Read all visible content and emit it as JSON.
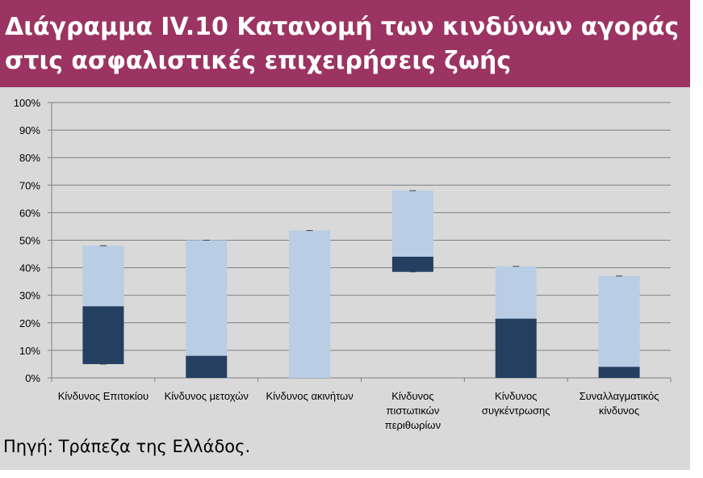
{
  "chart_data": {
    "type": "bar",
    "subtype": "floating-range-with-segment",
    "title_lines": [
      "Διάγραμμα IV.10 Κατανομή των κινδύνων αγοράς",
      "στις ασφαλιστικές επιχειρήσεις ζωής"
    ],
    "xlabel": "",
    "ylabel": "",
    "ylim": [
      0,
      100
    ],
    "y_ticks": [
      "0%",
      "10%",
      "20%",
      "30%",
      "40%",
      "50%",
      "60%",
      "70%",
      "80%",
      "90%",
      "100%"
    ],
    "y_tick_values": [
      0,
      10,
      20,
      30,
      40,
      50,
      60,
      70,
      80,
      90,
      100
    ],
    "grid": true,
    "legend": "none",
    "colors": {
      "range": "#b9cde5",
      "segment": "#243f60",
      "grid": "#7f7f7f",
      "background": "#d9d9d9"
    },
    "categories": [
      {
        "label_lines": [
          "Κίνδυνος Επιτοκίου"
        ],
        "min": 5,
        "max": 48,
        "seg_low": 5,
        "seg_high": 26
      },
      {
        "label_lines": [
          "Κίνδυνος μετοχών"
        ],
        "min": 0,
        "max": 50,
        "seg_low": 0,
        "seg_high": 8
      },
      {
        "label_lines": [
          "Κίνδυνος ακινήτων"
        ],
        "min": 0,
        "max": 53.5,
        "seg_low": 0,
        "seg_high": 0
      },
      {
        "label_lines": [
          "Κίνδυνος",
          "πιστωτικών",
          "περιθωρίων"
        ],
        "min": 38.5,
        "max": 68,
        "seg_low": 38.5,
        "seg_high": 44
      },
      {
        "label_lines": [
          "Κίνδυνος",
          "συγκέντρωσης"
        ],
        "min": 0,
        "max": 40.5,
        "seg_low": 0,
        "seg_high": 21.5
      },
      {
        "label_lines": [
          "Συναλλαγματικός",
          "κίνδυνος"
        ],
        "min": 0,
        "max": 37,
        "seg_low": 0,
        "seg_high": 4
      }
    ]
  },
  "source_text": "Πηγή: Τράπεζα της Ελλάδος."
}
